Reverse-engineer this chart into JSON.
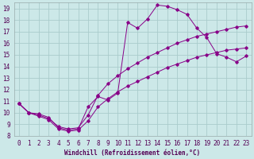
{
  "xlabel": "Windchill (Refroidissement éolien,°C)",
  "background_color": "#cce8e8",
  "grid_color": "#aacccc",
  "line_color": "#880088",
  "xlim": [
    -0.5,
    23.5
  ],
  "ylim": [
    8,
    19.5
  ],
  "xticks": [
    0,
    1,
    2,
    3,
    4,
    5,
    6,
    7,
    8,
    9,
    10,
    11,
    12,
    13,
    14,
    15,
    16,
    17,
    18,
    19,
    20,
    21,
    22,
    23
  ],
  "yticks": [
    8,
    9,
    10,
    11,
    12,
    13,
    14,
    15,
    16,
    17,
    18,
    19
  ],
  "line1_x": [
    0,
    1,
    2,
    3,
    4,
    5,
    6,
    7,
    8,
    9,
    10,
    11,
    12,
    13,
    14,
    15,
    16,
    17,
    18,
    19,
    20,
    21,
    22,
    23
  ],
  "line1_y": [
    10.8,
    10.0,
    9.9,
    9.6,
    8.7,
    8.5,
    8.6,
    10.5,
    11.4,
    11.1,
    11.7,
    17.8,
    17.3,
    18.1,
    19.3,
    19.2,
    18.9,
    18.5,
    17.3,
    16.5,
    15.1,
    14.8,
    14.4,
    14.9
  ],
  "line2_x": [
    0,
    1,
    2,
    3,
    4,
    5,
    6,
    7,
    8,
    9,
    10,
    11,
    12,
    13,
    14,
    15,
    16,
    17,
    18,
    19,
    20,
    21,
    22,
    23
  ],
  "line2_y": [
    10.8,
    10.0,
    9.8,
    9.5,
    8.8,
    8.6,
    8.7,
    9.8,
    11.5,
    12.5,
    13.2,
    13.8,
    14.3,
    14.8,
    15.2,
    15.6,
    16.0,
    16.3,
    16.6,
    16.8,
    17.0,
    17.2,
    17.4,
    17.5
  ],
  "line3_x": [
    0,
    1,
    2,
    3,
    4,
    5,
    6,
    7,
    8,
    9,
    10,
    11,
    12,
    13,
    14,
    15,
    16,
    17,
    18,
    19,
    20,
    21,
    22,
    23
  ],
  "line3_y": [
    10.8,
    10.0,
    9.7,
    9.4,
    8.6,
    8.4,
    8.5,
    9.3,
    10.5,
    11.2,
    11.8,
    12.3,
    12.7,
    13.1,
    13.5,
    13.9,
    14.2,
    14.5,
    14.8,
    15.0,
    15.2,
    15.4,
    15.5,
    15.6
  ],
  "xlabel_fontsize": 5.5,
  "tick_fontsize": 5.5
}
